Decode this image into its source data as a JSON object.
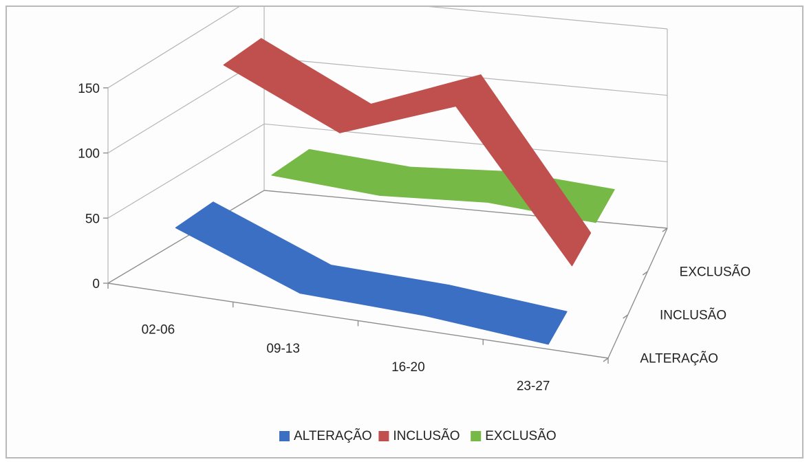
{
  "chart_data": {
    "type": "line",
    "style": "3d-ribbon",
    "title": "",
    "xlabel": "",
    "ylabel": "",
    "categories": [
      "02-06",
      "09-13",
      "16-20",
      "23-27"
    ],
    "ylim": [
      0,
      150
    ],
    "yticks": [
      0,
      50,
      100,
      150
    ],
    "grid": true,
    "legend_position": "bottom",
    "series": [
      {
        "name": "ALTERAÇÃO",
        "color": "#3A6FC4",
        "values": [
          47,
          11,
          8,
          0
        ]
      },
      {
        "name": "INCLUSÃO",
        "color": "#C0504D",
        "values": [
          146,
          106,
          138,
          28
        ]
      },
      {
        "name": "EXCLUSÃO",
        "color": "#76B947",
        "values": [
          37,
          31,
          35,
          29
        ]
      }
    ]
  }
}
